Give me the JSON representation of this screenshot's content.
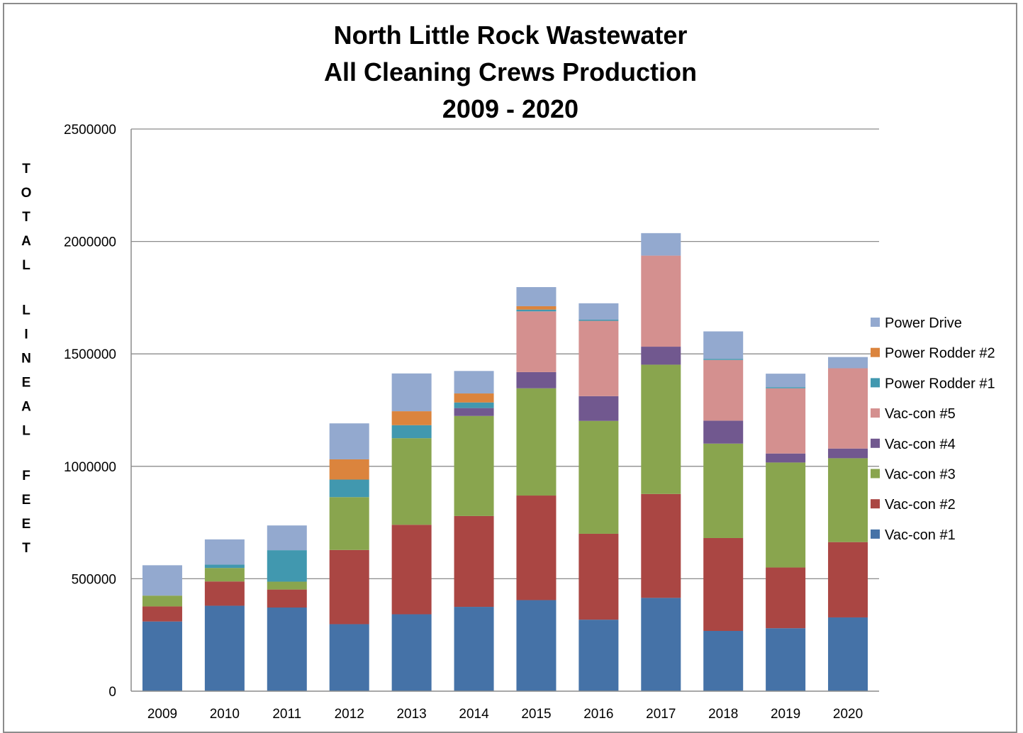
{
  "chart_data": {
    "type": "bar",
    "stacked": true,
    "title_lines": [
      "North Little Rock Wastewater",
      "All Cleaning Crews Production",
      "2009 - 2020"
    ],
    "ylabel": "TOTAL LINEAL FEET",
    "xlabel": "",
    "ylim": [
      0,
      2500000
    ],
    "yticks": [
      "0",
      "500000",
      "1000000",
      "1500000",
      "2000000",
      "2500000"
    ],
    "grid": true,
    "legend_position": "right",
    "categories": [
      "2009",
      "2010",
      "2011",
      "2012",
      "2013",
      "2014",
      "2015",
      "2016",
      "2017",
      "2018",
      "2019",
      "2020"
    ],
    "series": [
      {
        "name": "Vac-con #1",
        "color": "#4572A7",
        "values": [
          310000,
          380000,
          372000,
          298000,
          342000,
          375000,
          405000,
          318000,
          415000,
          268000,
          280000,
          328000
        ]
      },
      {
        "name": "Vac-con #2",
        "color": "#AA4643",
        "values": [
          67000,
          108000,
          80000,
          330000,
          398000,
          404000,
          465000,
          382000,
          462000,
          413000,
          270000,
          335000
        ]
      },
      {
        "name": "Vac-con #3",
        "color": "#89A54E",
        "values": [
          48000,
          60000,
          35000,
          235000,
          385000,
          445000,
          477000,
          502000,
          575000,
          420000,
          467000,
          373000
        ]
      },
      {
        "name": "Vac-con #4",
        "color": "#71588F",
        "values": [
          0,
          0,
          0,
          0,
          0,
          35000,
          72000,
          110000,
          80000,
          102000,
          40000,
          43000
        ]
      },
      {
        "name": "Vac-con #5",
        "color": "#D4908F",
        "values": [
          0,
          0,
          0,
          0,
          0,
          0,
          270000,
          335000,
          405000,
          270000,
          290000,
          357000
        ]
      },
      {
        "name": "Power Rodder #1",
        "color": "#4198AF",
        "values": [
          0,
          15000,
          140000,
          78000,
          58000,
          25000,
          8000,
          5000,
          0,
          5000,
          5000,
          0
        ]
      },
      {
        "name": "Power Rodder #2",
        "color": "#DB843D",
        "values": [
          0,
          0,
          0,
          90000,
          62000,
          40000,
          15000,
          0,
          0,
          0,
          0,
          0
        ]
      },
      {
        "name": "Power Drive",
        "color": "#93A9CF",
        "values": [
          135000,
          112000,
          110000,
          160000,
          168000,
          100000,
          85000,
          73000,
          100000,
          122000,
          60000,
          50000
        ]
      }
    ]
  }
}
